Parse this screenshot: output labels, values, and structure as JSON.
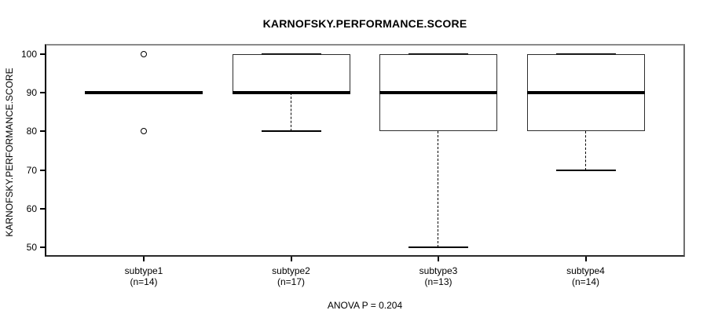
{
  "chart_data": {
    "type": "boxplot",
    "title": "KARNOFSKY.PERFORMANCE.SCORE",
    "ylabel": "KARNOFSKY.PERFORMANCE.SCORE",
    "annotation": "ANOVA P = 0.204",
    "ylim": [
      50,
      100
    ],
    "yticks": [
      50,
      60,
      70,
      80,
      90,
      100
    ],
    "grid": false,
    "legend": "none",
    "groups": [
      {
        "label": "subtype1",
        "sublabel": "(n=14)",
        "n": 14,
        "median": 90,
        "q1": 90,
        "q3": 90,
        "whisker_low": 90,
        "whisker_high": 90,
        "outliers": [
          100,
          80
        ]
      },
      {
        "label": "subtype2",
        "sublabel": "(n=17)",
        "n": 17,
        "median": 90,
        "q1": 90,
        "q3": 100,
        "whisker_low": 80,
        "whisker_high": 100,
        "outliers": []
      },
      {
        "label": "subtype3",
        "sublabel": "(n=13)",
        "n": 13,
        "median": 90,
        "q1": 80,
        "q3": 100,
        "whisker_low": 50,
        "whisker_high": 100,
        "outliers": []
      },
      {
        "label": "subtype4",
        "sublabel": "(n=14)",
        "n": 14,
        "median": 90,
        "q1": 80,
        "q3": 100,
        "whisker_low": 70,
        "whisker_high": 100,
        "outliers": []
      }
    ],
    "colors": {
      "line": "#000000",
      "frame_dark": "#2a2a2a",
      "frame_gray": "#8a8a8a",
      "background": "#ffffff"
    }
  }
}
